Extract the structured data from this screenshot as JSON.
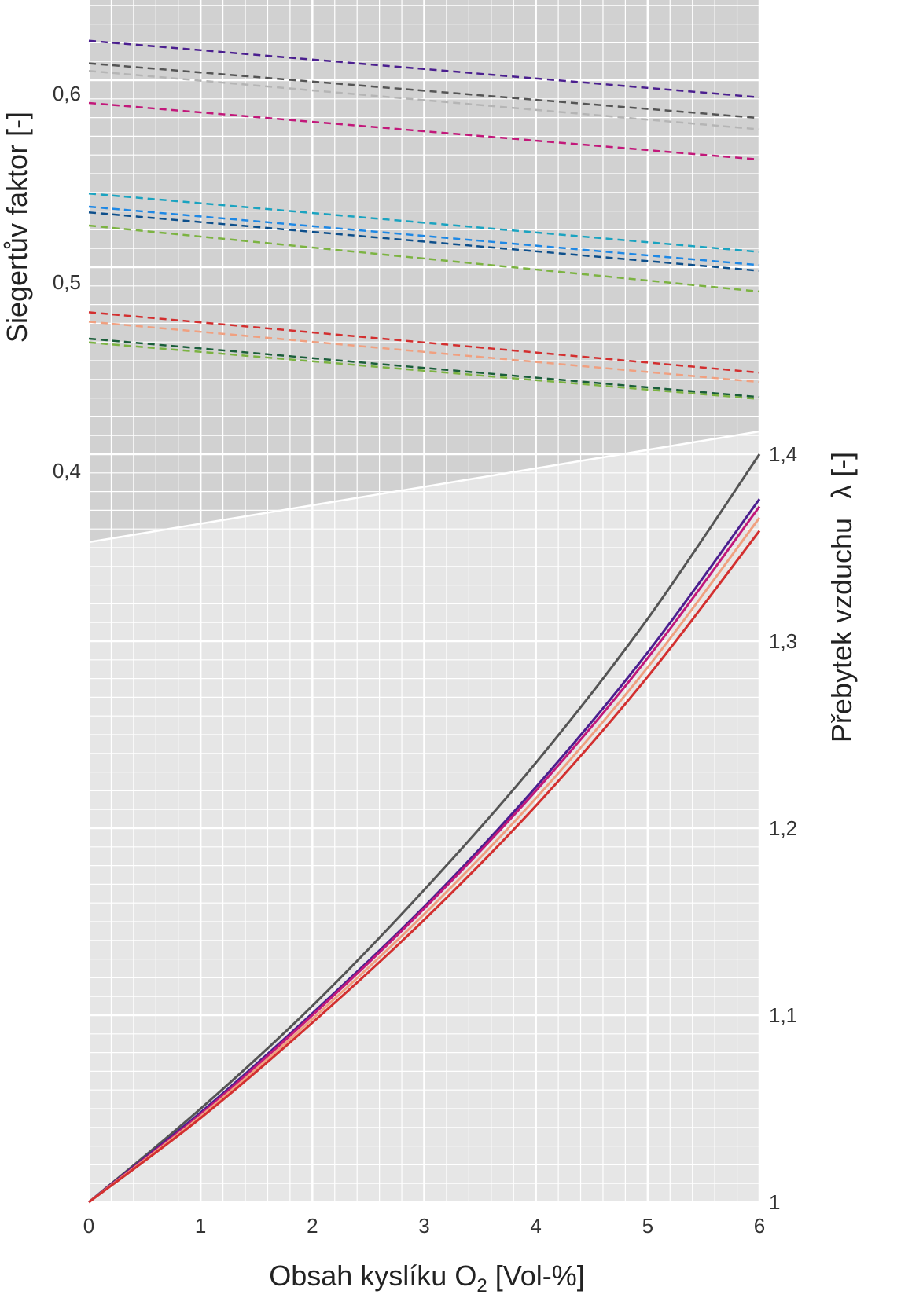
{
  "chart_data": {
    "type": "line",
    "x_axis": {
      "label_main": "Obsah kyslíku  O",
      "label_sub": "2",
      "label_unit": " [Vol-%]",
      "range": [
        0,
        6
      ],
      "ticks": [
        {
          "value": 0,
          "label": "0"
        },
        {
          "value": 1,
          "label": "1"
        },
        {
          "value": 2,
          "label": "2"
        },
        {
          "value": 3,
          "label": "3"
        },
        {
          "value": 4,
          "label": "4"
        },
        {
          "value": 5,
          "label": "5"
        },
        {
          "value": 6,
          "label": "6"
        }
      ]
    },
    "y_left": {
      "label": "Siegertův faktor [-]",
      "range": [
        0.36,
        0.65
      ],
      "ticks": [
        {
          "value": 0.4,
          "label": "0,4"
        },
        {
          "value": 0.5,
          "label": "0,5"
        },
        {
          "value": 0.6,
          "label": "0,6"
        }
      ]
    },
    "y_right": {
      "label": "Přebytek vzduchu",
      "symbol": "λ [-]",
      "range": [
        1.0,
        1.42
      ],
      "ticks": [
        {
          "value": 1.0,
          "label": "1"
        },
        {
          "value": 1.1,
          "label": "1,1"
        },
        {
          "value": 1.2,
          "label": "1,2"
        },
        {
          "value": 1.3,
          "label": "1,3"
        },
        {
          "value": 1.4,
          "label": "1,4"
        }
      ]
    },
    "grid": true,
    "siegert_series": [
      {
        "color": "#4b1f8f",
        "x": [
          0,
          6
        ],
        "y": [
          0.628,
          0.598
        ]
      },
      {
        "color": "#555555",
        "x": [
          0,
          6
        ],
        "y": [
          0.616,
          0.587
        ]
      },
      {
        "color": "#b5b5b5",
        "x": [
          0,
          6
        ],
        "y": [
          0.612,
          0.581
        ]
      },
      {
        "color": "#c2187a",
        "x": [
          0,
          6
        ],
        "y": [
          0.595,
          0.565
        ]
      },
      {
        "color": "#1aa3c0",
        "x": [
          0,
          6
        ],
        "y": [
          0.547,
          0.516
        ]
      },
      {
        "color": "#1e88e5",
        "x": [
          0,
          6
        ],
        "y": [
          0.54,
          0.509
        ]
      },
      {
        "color": "#0d4f8b",
        "x": [
          0,
          6
        ],
        "y": [
          0.537,
          0.506
        ]
      },
      {
        "color": "#7cb342",
        "x": [
          0,
          6
        ],
        "y": [
          0.53,
          0.495
        ]
      },
      {
        "color": "#d32f2f",
        "x": [
          0,
          6
        ],
        "y": [
          0.484,
          0.452
        ]
      },
      {
        "color": "#f0a080",
        "x": [
          0,
          6
        ],
        "y": [
          0.479,
          0.447
        ]
      },
      {
        "color": "#1b5e3a",
        "x": [
          0,
          6
        ],
        "y": [
          0.47,
          0.439
        ]
      },
      {
        "color": "#7cb342",
        "x": [
          0,
          6
        ],
        "y": [
          0.468,
          0.438
        ]
      }
    ],
    "lambda_series": [
      {
        "color": "#555555",
        "x": [
          0,
          1,
          2,
          3,
          4,
          5,
          6
        ],
        "y": [
          1.0,
          1.05,
          1.105,
          1.167,
          1.235,
          1.312,
          1.4
        ]
      },
      {
        "color": "#4b1f8f",
        "x": [
          0,
          1,
          2,
          3,
          4,
          5,
          6
        ],
        "y": [
          1.0,
          1.048,
          1.101,
          1.158,
          1.222,
          1.294,
          1.376
        ]
      },
      {
        "color": "#c2187a",
        "x": [
          0,
          1,
          2,
          3,
          4,
          5,
          6
        ],
        "y": [
          1.0,
          1.047,
          1.1,
          1.157,
          1.22,
          1.291,
          1.372
        ]
      },
      {
        "color": "#f0a080",
        "x": [
          0,
          1,
          2,
          3,
          4,
          5,
          6
        ],
        "y": [
          1.0,
          1.046,
          1.098,
          1.154,
          1.216,
          1.286,
          1.366
        ]
      },
      {
        "color": "#d32f2f",
        "x": [
          0,
          1,
          2,
          3,
          4,
          5,
          6
        ],
        "y": [
          1.0,
          1.045,
          1.096,
          1.151,
          1.212,
          1.281,
          1.359
        ]
      }
    ]
  }
}
